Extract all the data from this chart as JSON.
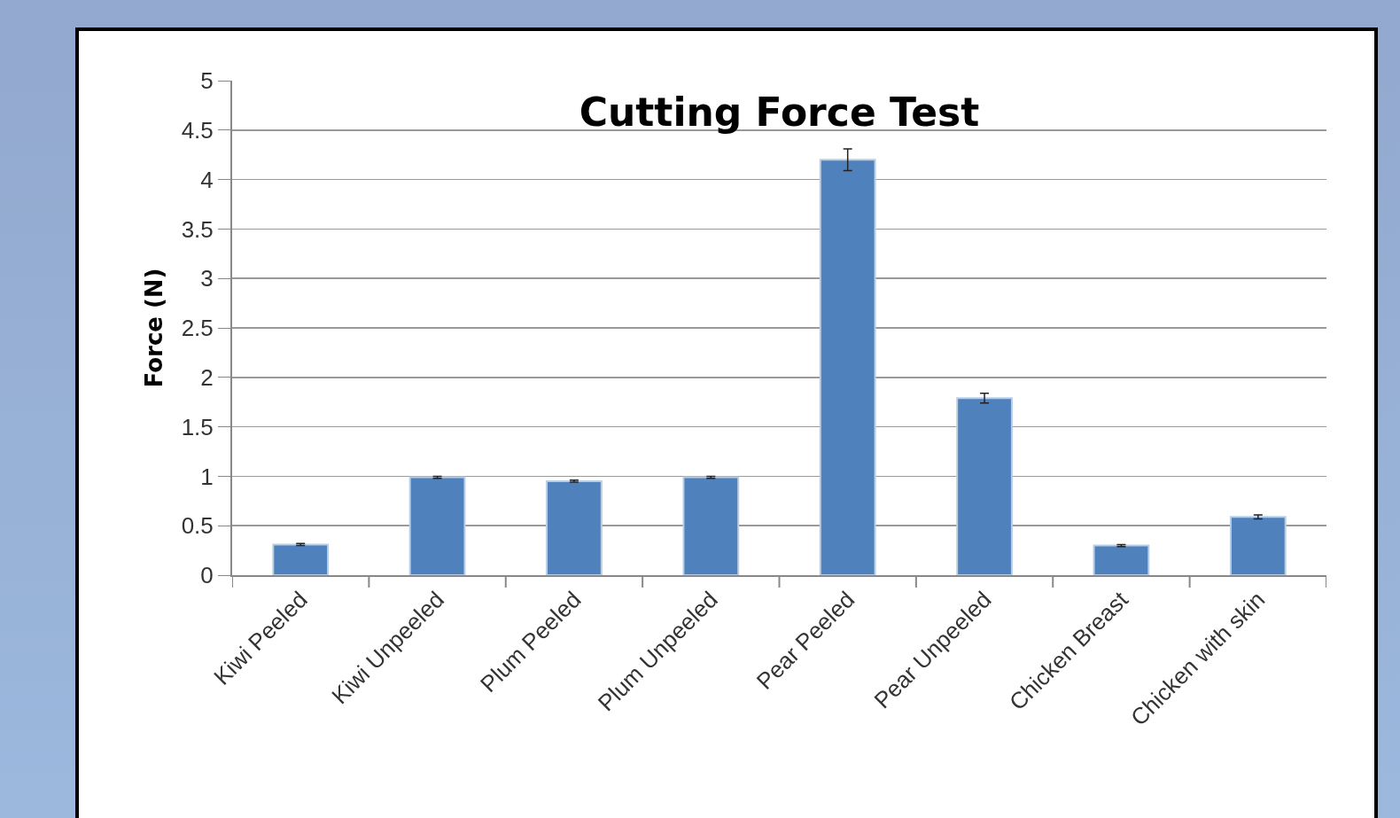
{
  "chart_data": {
    "type": "bar",
    "title": "Cutting Force Test",
    "ylabel": "Force (N)",
    "categories": [
      "Kiwi Peeled",
      "Kiwi Unpeeled",
      "Plum Peeled",
      "Plum Unpeeled",
      "Pear Peeled",
      "Pear Unpeeled",
      "Chicken Breast",
      "Chicken with skin"
    ],
    "values": [
      0.31,
      0.99,
      0.95,
      0.99,
      4.2,
      1.79,
      0.3,
      0.59
    ],
    "errors": [
      0.01,
      0.01,
      0.01,
      0.01,
      0.11,
      0.05,
      0.01,
      0.02
    ],
    "color": "#4f81bd",
    "ylim": [
      0,
      5
    ],
    "yticks": [
      0,
      0.5,
      1,
      1.5,
      2,
      2.5,
      3,
      3.5,
      4,
      4.5,
      5
    ],
    "grid": "y"
  }
}
